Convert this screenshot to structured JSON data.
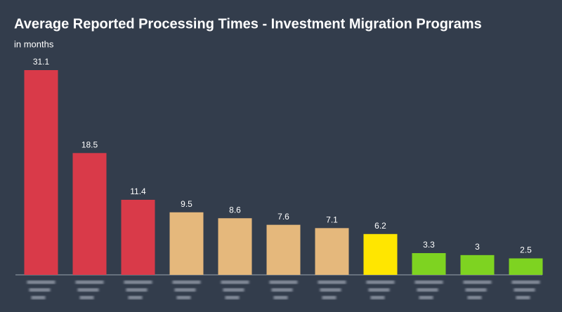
{
  "chart_data": {
    "type": "bar",
    "title": "Average Reported Processing Times - Investment Migration Programs",
    "subtitle": "in months",
    "categories": [
      null,
      null,
      null,
      null,
      null,
      null,
      null,
      null,
      null,
      null,
      null
    ],
    "values": [
      31.1,
      18.5,
      11.4,
      9.5,
      8.6,
      7.6,
      7.1,
      6.2,
      3.3,
      3,
      2.5
    ],
    "colors": [
      "#d93a49",
      "#d93a49",
      "#d93a49",
      "#e5b87c",
      "#e5b87c",
      "#e5b87c",
      "#e5b87c",
      "#ffe600",
      "#7ed321",
      "#7ed321",
      "#7ed321"
    ],
    "value_labels_shown": true
  }
}
